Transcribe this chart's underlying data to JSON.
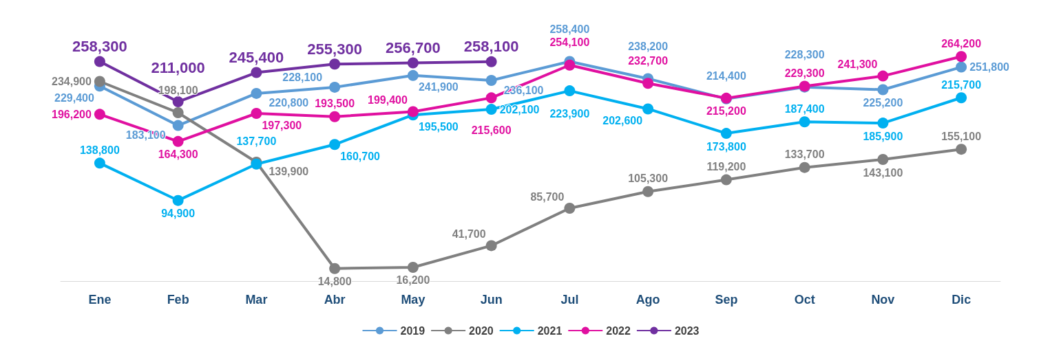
{
  "chart_data": {
    "type": "line",
    "categories": [
      "Ene",
      "Feb",
      "Mar",
      "Abr",
      "May",
      "Jun",
      "Jul",
      "Ago",
      "Sep",
      "Oct",
      "Nov",
      "Dic"
    ],
    "series": [
      {
        "name": "2019",
        "color": "#5b9bd5",
        "values": [
          229400,
          183100,
          220800,
          228100,
          241900,
          236100,
          258400,
          238200,
          214400,
          228300,
          225200,
          251800
        ],
        "value_labels": [
          "229,400",
          "183,100",
          "220,800",
          "228,100",
          "241,900",
          "236,100",
          "258,400",
          "238,200",
          "214,400",
          "228,300",
          "225,200",
          "251,800"
        ]
      },
      {
        "name": "2020",
        "color": "#808080",
        "values": [
          234900,
          198100,
          139900,
          14800,
          16200,
          41700,
          85700,
          105300,
          119200,
          133700,
          143100,
          155100
        ],
        "value_labels": [
          "234,900",
          "198,100",
          "139,900",
          "14,800",
          "16,200",
          "41,700",
          "85,700",
          "105,300",
          "119,200",
          "133,700",
          "143,100",
          "155,100"
        ]
      },
      {
        "name": "2021",
        "color": "#00b0f0",
        "values": [
          138800,
          94900,
          137700,
          160700,
          195500,
          202100,
          223900,
          202600,
          173800,
          187400,
          185900,
          215700
        ],
        "value_labels": [
          "138,800",
          "94,900",
          "137,700",
          "160,700",
          "195,500",
          "202,100",
          "223,900",
          "202,600",
          "173,800",
          "187,400",
          "185,900",
          "215,700"
        ]
      },
      {
        "name": "2022",
        "color": "#e010a0",
        "values": [
          196200,
          164300,
          197300,
          193500,
          199400,
          215600,
          254100,
          232700,
          215200,
          229300,
          241300,
          264200
        ],
        "value_labels": [
          "196,200",
          "164,300",
          "197,300",
          "193,500",
          "199,400",
          "215,600",
          "254,100",
          "232,700",
          "215,200",
          "229,300",
          "241,300",
          "264,200"
        ]
      },
      {
        "name": "2023",
        "color": "#7030a0",
        "values": [
          258300,
          211000,
          245400,
          255300,
          256700,
          258100,
          null,
          null,
          null,
          null,
          null,
          null
        ],
        "value_labels": [
          "258,300",
          "211,000",
          "245,400",
          "255,300",
          "256,700",
          "258,100",
          null,
          null,
          null,
          null,
          null,
          null
        ]
      }
    ],
    "marker": "circle",
    "line_style": "solid",
    "grid": false,
    "legend": "bottom"
  }
}
